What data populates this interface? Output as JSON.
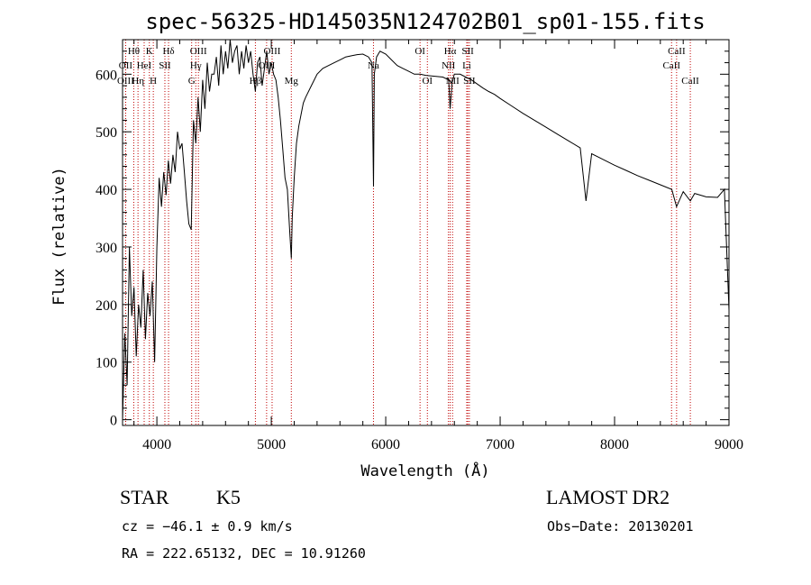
{
  "chart_data": {
    "type": "line",
    "title": "spec-56325-HD145035N124702B01_sp01-155.fits",
    "xlabel": "Wavelength (Å)",
    "ylabel": "Flux (relative)",
    "xlim": [
      3700,
      9000
    ],
    "ylim": [
      -10,
      660
    ],
    "x_ticks": [
      4000,
      5000,
      6000,
      7000,
      8000,
      9000
    ],
    "y_ticks": [
      0,
      100,
      200,
      300,
      400,
      500,
      600
    ],
    "grid": false,
    "series": [
      {
        "x": [
          3700,
          3720,
          3740,
          3760,
          3780,
          3800,
          3820,
          3840,
          3860,
          3880,
          3900,
          3920,
          3940,
          3960,
          3980,
          4000,
          4020,
          4040,
          4060,
          4080,
          4100,
          4120,
          4140,
          4160,
          4180,
          4200,
          4220,
          4240,
          4260,
          4280,
          4300,
          4320,
          4340,
          4360,
          4380,
          4400,
          4420,
          4440,
          4460,
          4480,
          4500,
          4520,
          4540,
          4560,
          4580,
          4600,
          4620,
          4640,
          4660,
          4680,
          4700,
          4720,
          4740,
          4760,
          4780,
          4800,
          4820,
          4840,
          4861,
          4880,
          4900,
          4920,
          4940,
          4960,
          4980,
          5000,
          5020,
          5040,
          5060,
          5080,
          5100,
          5120,
          5140,
          5160,
          5175,
          5183,
          5200,
          5220,
          5240,
          5260,
          5280,
          5300,
          5350,
          5400,
          5450,
          5500,
          5550,
          5600,
          5650,
          5700,
          5750,
          5800,
          5850,
          5880,
          5893,
          5900,
          5920,
          5950,
          6000,
          6050,
          6100,
          6150,
          6200,
          6250,
          6300,
          6350,
          6400,
          6450,
          6500,
          6550,
          6563,
          6580,
          6600,
          6650,
          6700,
          6750,
          6800,
          6850,
          6900,
          6950,
          7000,
          7100,
          7200,
          7300,
          7400,
          7500,
          7600,
          7700,
          7750,
          7800,
          7900,
          8000,
          8100,
          8200,
          8300,
          8400,
          8500,
          8542,
          8600,
          8662,
          8700,
          8800,
          8900,
          8960,
          9000
        ],
        "values": [
          0,
          150,
          60,
          300,
          180,
          230,
          110,
          200,
          160,
          260,
          140,
          220,
          180,
          240,
          100,
          300,
          420,
          370,
          430,
          390,
          450,
          410,
          460,
          430,
          500,
          470,
          480,
          430,
          380,
          340,
          330,
          520,
          480,
          560,
          500,
          590,
          540,
          620,
          570,
          600,
          600,
          630,
          580,
          650,
          600,
          640,
          610,
          660,
          620,
          640,
          650,
          600,
          640,
          610,
          650,
          620,
          640,
          600,
          570,
          620,
          630,
          580,
          610,
          640,
          600,
          620,
          600,
          590,
          560,
          520,
          470,
          420,
          400,
          330,
          280,
          350,
          420,
          480,
          510,
          530,
          550,
          560,
          580,
          600,
          610,
          615,
          620,
          625,
          630,
          632,
          634,
          635,
          630,
          620,
          405,
          600,
          630,
          640,
          635,
          625,
          615,
          610,
          605,
          600,
          600,
          598,
          597,
          596,
          595,
          590,
          540,
          585,
          600,
          600,
          595,
          590,
          583,
          576,
          570,
          565,
          558,
          545,
          532,
          520,
          508,
          496,
          484,
          472,
          380,
          462,
          452,
          442,
          433,
          424,
          416,
          408,
          400,
          370,
          396,
          380,
          393,
          387,
          386,
          400,
          190
        ]
      }
    ],
    "spectral_lines": [
      {
        "label": "Hθ",
        "wavelength": 3798,
        "row": 1
      },
      {
        "label": "OII",
        "wavelength": 3727,
        "row": 2
      },
      {
        "label": "OIII",
        "wavelength": 3727,
        "row": 3
      },
      {
        "label": "K",
        "wavelength": 3934,
        "row": 1
      },
      {
        "label": "HeI",
        "wavelength": 3889,
        "row": 2
      },
      {
        "label": "Hη",
        "wavelength": 3835,
        "row": 3
      },
      {
        "label": "Hδ",
        "wavelength": 4102,
        "row": 1
      },
      {
        "label": "SII",
        "wavelength": 4070,
        "row": 2
      },
      {
        "label": "H",
        "wavelength": 3969,
        "row": 3
      },
      {
        "label": "OIII",
        "wavelength": 4363,
        "row": 1
      },
      {
        "label": "Hγ",
        "wavelength": 4340,
        "row": 2
      },
      {
        "label": "G",
        "wavelength": 4304,
        "row": 3
      },
      {
        "label": "OIII",
        "wavelength": 5007,
        "row": 1
      },
      {
        "label": "OIII",
        "wavelength": 4959,
        "row": 2
      },
      {
        "label": "Hβ",
        "wavelength": 4861,
        "row": 3
      },
      {
        "label": "Mg",
        "wavelength": 5175,
        "row": 3
      },
      {
        "label": "Na",
        "wavelength": 5893,
        "row": 2
      },
      {
        "label": "OI",
        "wavelength": 6300,
        "row": 1
      },
      {
        "label": "OI",
        "wavelength": 6364,
        "row": 3
      },
      {
        "label": "Hα",
        "wavelength": 6563,
        "row": 1
      },
      {
        "label": "SII",
        "wavelength": 6717,
        "row": 1
      },
      {
        "label": "NII",
        "wavelength": 6548,
        "row": 2
      },
      {
        "label": "Li",
        "wavelength": 6708,
        "row": 2
      },
      {
        "label": "NII",
        "wavelength": 6584,
        "row": 3
      },
      {
        "label": "SII",
        "wavelength": 6731,
        "row": 3
      },
      {
        "label": "CaII",
        "wavelength": 8542,
        "row": 1
      },
      {
        "label": "CaII",
        "wavelength": 8498,
        "row": 2
      },
      {
        "label": "CaII",
        "wavelength": 8662,
        "row": 3
      }
    ],
    "line_color": "#000000",
    "marker_color": "#c00000"
  },
  "info": {
    "object_class": "STAR",
    "subclass": "K5",
    "survey": "LAMOST DR2",
    "cz": "cz = −46.1 ± 0.9 km/s",
    "obs_date": "Obs−Date: 20130201",
    "coords": "RA = 222.65132, DEC =  10.91260"
  }
}
